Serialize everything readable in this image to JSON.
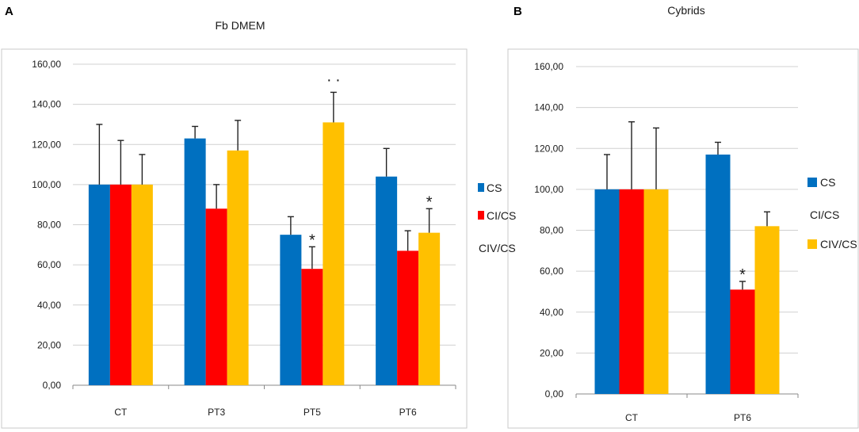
{
  "panels": [
    {
      "label": "A",
      "chart_data": {
        "type": "bar",
        "title": "Fb DMEM",
        "xlabel": "",
        "ylabel": "",
        "ylim": [
          0,
          160
        ],
        "yticks": [
          "0,00",
          "20,00",
          "40,00",
          "60,00",
          "80,00",
          "100,00",
          "120,00",
          "140,00",
          "160,00"
        ],
        "grid": true,
        "categories": [
          "CT",
          "PT3",
          "PT5",
          "PT6"
        ],
        "series": [
          {
            "name": "CS",
            "color": "#0070C0",
            "values": [
              100,
              123,
              75,
              104
            ],
            "errors": [
              30,
              6,
              9,
              14
            ]
          },
          {
            "name": "CI/CS",
            "color": "#FF0000",
            "values": [
              100,
              88,
              58,
              67
            ],
            "errors": [
              22,
              12,
              11,
              10
            ]
          },
          {
            "name": "CIV/CS",
            "color": "#FFC000",
            "values": [
              100,
              117,
              131,
              76
            ],
            "errors": [
              15,
              15,
              15,
              12
            ]
          }
        ],
        "annotations": [
          {
            "text": "*",
            "category": "PT5",
            "series": "CI/CS"
          },
          {
            "text": ". .",
            "category": "PT5",
            "series": "CIV/CS"
          },
          {
            "text": "*",
            "category": "PT6",
            "series": "CIV/CS"
          }
        ],
        "legend_position": "right"
      }
    },
    {
      "label": "B",
      "chart_data": {
        "type": "bar",
        "title": "Cybrids",
        "xlabel": "",
        "ylabel": "",
        "ylim": [
          0,
          160
        ],
        "yticks": [
          "0,00",
          "20,00",
          "40,00",
          "60,00",
          "80,00",
          "100,00",
          "120,00",
          "140,00",
          "160,00"
        ],
        "grid": true,
        "categories": [
          "CT",
          "PT6"
        ],
        "series": [
          {
            "name": "CS",
            "color": "#0070C0",
            "values": [
              100,
              117
            ],
            "errors": [
              17,
              6
            ]
          },
          {
            "name": "CI/CS",
            "color": "#FF0000",
            "values": [
              100,
              51
            ],
            "errors": [
              33,
              4
            ]
          },
          {
            "name": "CIV/CS",
            "color": "#FFC000",
            "values": [
              100,
              82
            ],
            "errors": [
              30,
              7
            ]
          }
        ],
        "annotations": [
          {
            "text": "*",
            "category": "PT6",
            "series": "CI/CS"
          }
        ],
        "legend_position": "right"
      }
    }
  ]
}
